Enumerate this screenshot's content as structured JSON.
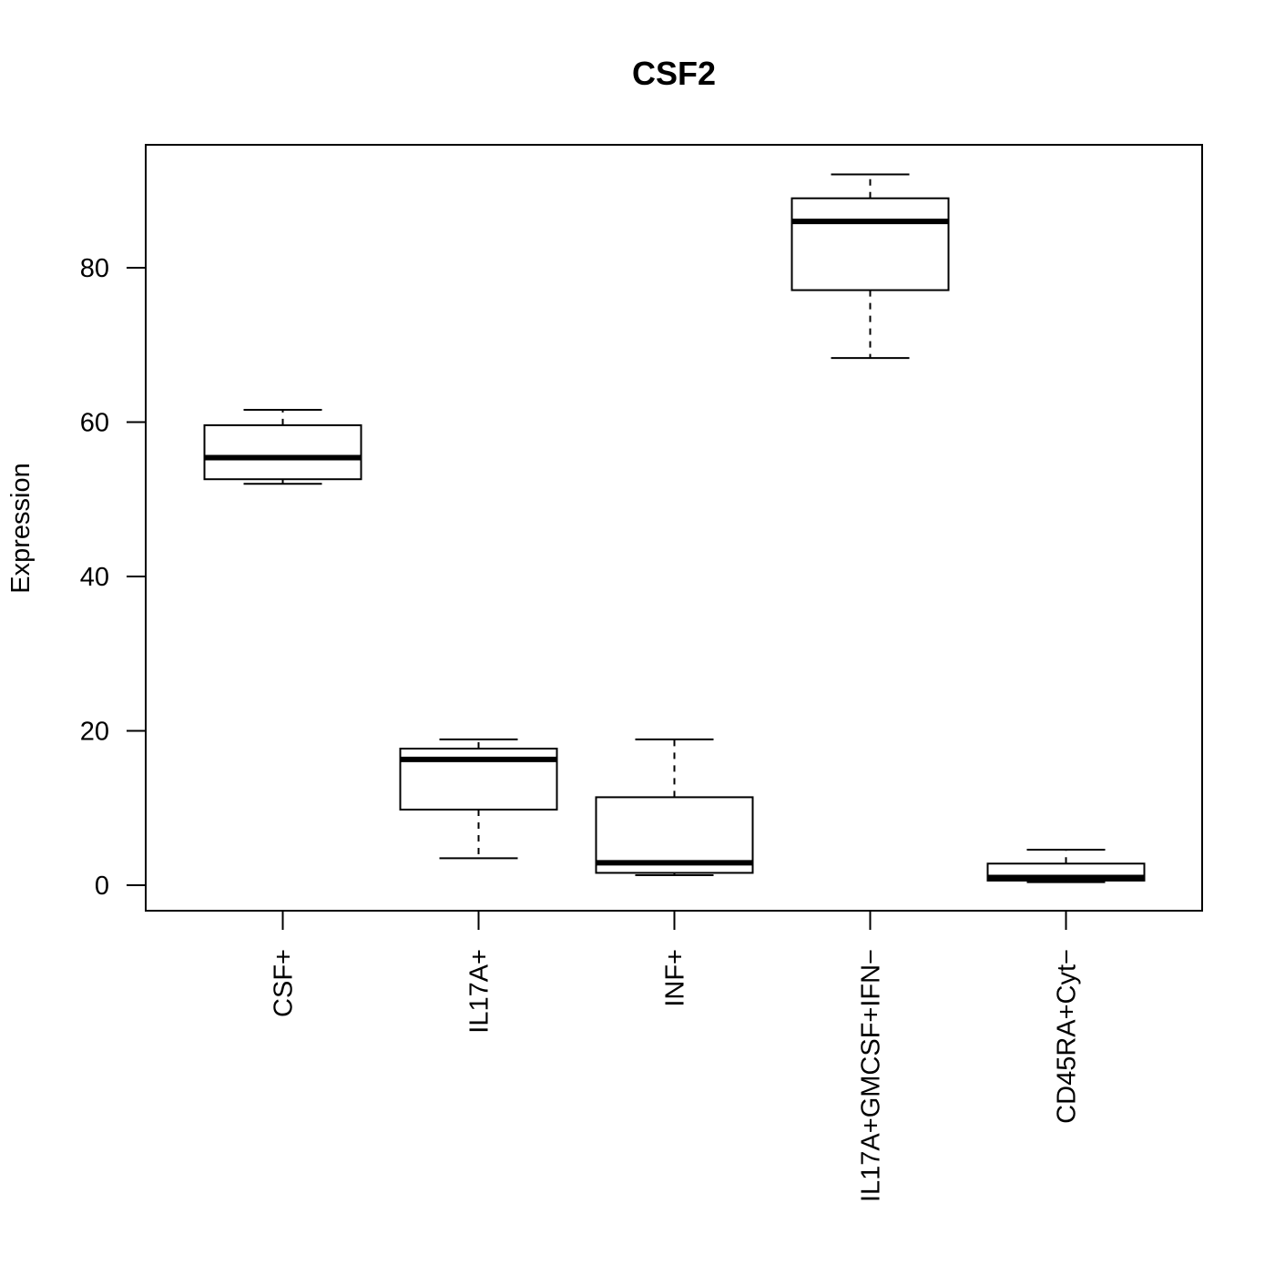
{
  "chart_data": {
    "type": "boxplot",
    "title": "CSF2",
    "xlabel": "",
    "ylabel": "Expression",
    "ylim": [
      -3.3,
      95.6
    ],
    "yticks": [
      0,
      20,
      40,
      60,
      80
    ],
    "grid": false,
    "categories": [
      "CSF+",
      "IL17A+",
      "INF+",
      "IL17A+GMCSF+IFN−",
      "CD45RA+Cyt−"
    ],
    "boxes": [
      {
        "lower_whisker": 52.0,
        "q1": 52.6,
        "median": 55.4,
        "q3": 59.6,
        "upper_whisker": 61.6
      },
      {
        "lower_whisker": 3.5,
        "q1": 9.8,
        "median": 16.3,
        "q3": 17.7,
        "upper_whisker": 18.9
      },
      {
        "lower_whisker": 1.3,
        "q1": 1.6,
        "median": 2.9,
        "q3": 11.4,
        "upper_whisker": 18.9
      },
      {
        "lower_whisker": 68.3,
        "q1": 77.1,
        "median": 86.0,
        "q3": 89.0,
        "upper_whisker": 92.1
      },
      {
        "lower_whisker": 0.4,
        "q1": 0.6,
        "median": 1.0,
        "q3": 2.8,
        "upper_whisker": 4.6
      }
    ]
  }
}
